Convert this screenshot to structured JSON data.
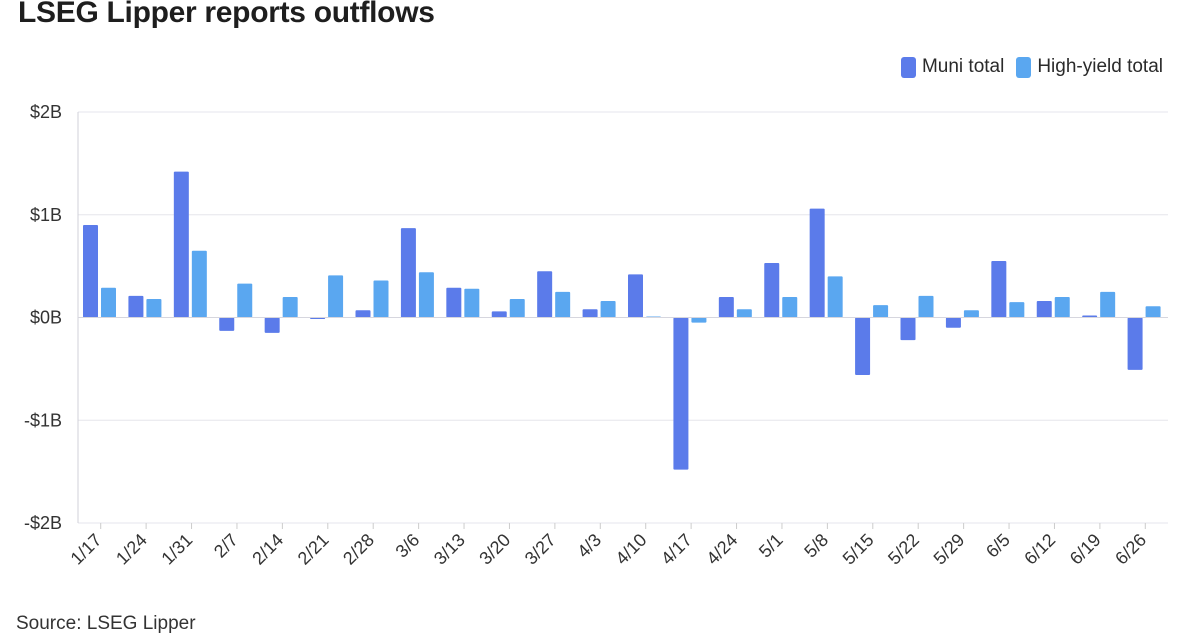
{
  "title": "LSEG Lipper reports outflows",
  "source": "Source: LSEG Lipper",
  "legend": [
    {
      "label": "Muni total",
      "color": "#5b7bea"
    },
    {
      "label": "High-yield total",
      "color": "#5aa7f0"
    }
  ],
  "chart_data": {
    "type": "bar",
    "title": "LSEG Lipper reports outflows",
    "xlabel": "",
    "ylabel": "",
    "ylim": [
      -2,
      2
    ],
    "y_ticks": [
      {
        "value": 2,
        "label": "$2B"
      },
      {
        "value": 1,
        "label": "$1B"
      },
      {
        "value": 0,
        "label": "$0B"
      },
      {
        "value": -1,
        "label": "-$1B"
      },
      {
        "value": -2,
        "label": "-$2B"
      }
    ],
    "grid": true,
    "legend_position": "top-right",
    "categories": [
      "1/17",
      "1/24",
      "1/31",
      "2/7",
      "2/14",
      "2/21",
      "2/28",
      "3/6",
      "3/13",
      "3/20",
      "3/27",
      "4/3",
      "4/10",
      "4/17",
      "4/24",
      "5/1",
      "5/8",
      "5/15",
      "5/22",
      "5/29",
      "6/5",
      "6/12",
      "6/19",
      "6/26"
    ],
    "series": [
      {
        "name": "Muni total",
        "color": "#5b7bea",
        "values": [
          0.9,
          0.21,
          1.42,
          -0.13,
          -0.15,
          -0.01,
          0.07,
          0.87,
          0.29,
          0.06,
          0.45,
          0.08,
          0.42,
          -1.48,
          0.2,
          0.53,
          1.06,
          -0.56,
          -0.22,
          -0.1,
          0.55,
          0.16,
          0.02,
          -0.51
        ]
      },
      {
        "name": "High-yield total",
        "color": "#5aa7f0",
        "values": [
          0.29,
          0.18,
          0.65,
          0.33,
          0.2,
          0.41,
          0.36,
          0.44,
          0.28,
          0.18,
          0.25,
          0.16,
          0.01,
          -0.05,
          0.08,
          0.2,
          0.4,
          0.12,
          0.21,
          0.07,
          0.15,
          0.2,
          0.25,
          0.11
        ]
      }
    ]
  }
}
